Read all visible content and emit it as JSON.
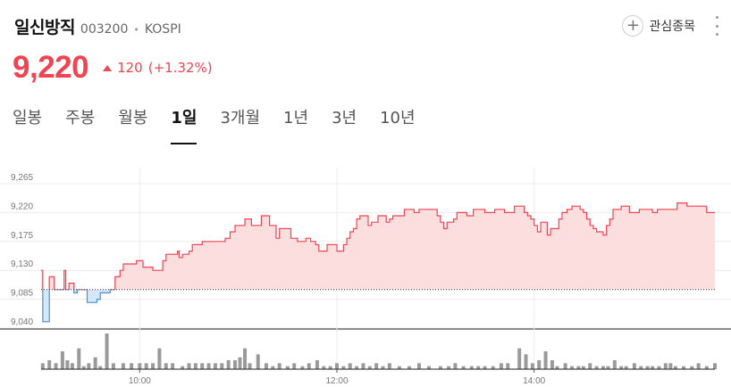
{
  "stock": {
    "name": "일신방직",
    "code": "003200",
    "market": "KOSPI",
    "price": "9,220",
    "change": "120",
    "change_pct": "(+1.32%)"
  },
  "watchlist": {
    "label": "관심종목"
  },
  "tabs": [
    {
      "label": "일봉",
      "active": false
    },
    {
      "label": "주봉",
      "active": false
    },
    {
      "label": "월봉",
      "active": false
    },
    {
      "label": "1일",
      "active": true
    },
    {
      "label": "3개월",
      "active": false
    },
    {
      "label": "1년",
      "active": false
    },
    {
      "label": "3년",
      "active": false
    },
    {
      "label": "10년",
      "active": false
    }
  ],
  "colors": {
    "up": "#f04452",
    "up_fill": "#fcdede",
    "down": "#4a8fd4",
    "down_fill": "#d6e8f7",
    "volume": "#9a9a9a"
  },
  "chart_data": {
    "type": "area",
    "reference_price": 9100,
    "y_ticks": [
      9040,
      9085,
      9130,
      9175,
      9220,
      9265
    ],
    "y_tick_labels": [
      "9,040",
      "9,085",
      "9,130",
      "9,175",
      "9,220",
      "9,265"
    ],
    "ylim": [
      9040,
      9290
    ],
    "x_tick_labels": [
      "10:00",
      "12:00",
      "14:00"
    ],
    "x_ticks_min": [
      60,
      180,
      300
    ],
    "xlim_min": [
      0,
      410
    ],
    "grid": true,
    "price_points": [
      [
        0,
        9130
      ],
      [
        1,
        9050
      ],
      [
        4,
        9050
      ],
      [
        5,
        9120
      ],
      [
        7,
        9120
      ],
      [
        8,
        9100
      ],
      [
        12,
        9100
      ],
      [
        14,
        9130
      ],
      [
        15,
        9100
      ],
      [
        17,
        9110
      ],
      [
        19,
        9110
      ],
      [
        20,
        9095
      ],
      [
        22,
        9100
      ],
      [
        26,
        9100
      ],
      [
        28,
        9080
      ],
      [
        32,
        9080
      ],
      [
        34,
        9085
      ],
      [
        36,
        9095
      ],
      [
        40,
        9095
      ],
      [
        42,
        9100
      ],
      [
        45,
        9120
      ],
      [
        48,
        9130
      ],
      [
        50,
        9140
      ],
      [
        55,
        9140
      ],
      [
        58,
        9145
      ],
      [
        61,
        9145
      ],
      [
        62,
        9135
      ],
      [
        66,
        9135
      ],
      [
        68,
        9130
      ],
      [
        72,
        9130
      ],
      [
        74,
        9145
      ],
      [
        76,
        9155
      ],
      [
        80,
        9155
      ],
      [
        83,
        9160
      ],
      [
        84,
        9150
      ],
      [
        86,
        9155
      ],
      [
        88,
        9155
      ],
      [
        90,
        9160
      ],
      [
        92,
        9170
      ],
      [
        96,
        9170
      ],
      [
        98,
        9175
      ],
      [
        102,
        9175
      ],
      [
        104,
        9175
      ],
      [
        110,
        9175
      ],
      [
        112,
        9180
      ],
      [
        115,
        9190
      ],
      [
        117,
        9190
      ],
      [
        118,
        9200
      ],
      [
        120,
        9200
      ],
      [
        122,
        9200
      ],
      [
        124,
        9210
      ],
      [
        126,
        9210
      ],
      [
        128,
        9200
      ],
      [
        132,
        9200
      ],
      [
        134,
        9215
      ],
      [
        137,
        9215
      ],
      [
        139,
        9200
      ],
      [
        141,
        9200
      ],
      [
        143,
        9180
      ],
      [
        145,
        9195
      ],
      [
        150,
        9195
      ],
      [
        152,
        9180
      ],
      [
        154,
        9180
      ],
      [
        156,
        9175
      ],
      [
        159,
        9175
      ],
      [
        161,
        9180
      ],
      [
        164,
        9175
      ],
      [
        167,
        9170
      ],
      [
        169,
        9160
      ],
      [
        172,
        9160
      ],
      [
        174,
        9170
      ],
      [
        178,
        9170
      ],
      [
        180,
        9160
      ],
      [
        182,
        9160
      ],
      [
        184,
        9170
      ],
      [
        186,
        9180
      ],
      [
        188,
        9190
      ],
      [
        190,
        9195
      ],
      [
        192,
        9210
      ],
      [
        194,
        9215
      ],
      [
        197,
        9215
      ],
      [
        199,
        9200
      ],
      [
        201,
        9205
      ],
      [
        203,
        9205
      ],
      [
        205,
        9215
      ],
      [
        208,
        9215
      ],
      [
        210,
        9205
      ],
      [
        212,
        9210
      ],
      [
        214,
        9215
      ],
      [
        218,
        9215
      ],
      [
        221,
        9225
      ],
      [
        225,
        9225
      ],
      [
        227,
        9220
      ],
      [
        230,
        9225
      ],
      [
        239,
        9225
      ],
      [
        241,
        9215
      ],
      [
        243,
        9205
      ],
      [
        245,
        9195
      ],
      [
        247,
        9205
      ],
      [
        249,
        9205
      ],
      [
        251,
        9210
      ],
      [
        253,
        9220
      ],
      [
        257,
        9220
      ],
      [
        259,
        9215
      ],
      [
        261,
        9215
      ],
      [
        263,
        9225
      ],
      [
        268,
        9225
      ],
      [
        270,
        9220
      ],
      [
        274,
        9220
      ],
      [
        276,
        9225
      ],
      [
        280,
        9225
      ],
      [
        282,
        9220
      ],
      [
        286,
        9220
      ],
      [
        288,
        9230
      ],
      [
        292,
        9230
      ],
      [
        294,
        9220
      ],
      [
        296,
        9215
      ],
      [
        298,
        9210
      ],
      [
        300,
        9200
      ],
      [
        302,
        9190
      ],
      [
        304,
        9205
      ],
      [
        306,
        9205
      ],
      [
        308,
        9185
      ],
      [
        310,
        9195
      ],
      [
        313,
        9195
      ],
      [
        315,
        9210
      ],
      [
        317,
        9220
      ],
      [
        320,
        9225
      ],
      [
        323,
        9230
      ],
      [
        326,
        9230
      ],
      [
        328,
        9225
      ],
      [
        330,
        9220
      ],
      [
        332,
        9210
      ],
      [
        334,
        9200
      ],
      [
        336,
        9195
      ],
      [
        338,
        9190
      ],
      [
        340,
        9190
      ],
      [
        342,
        9185
      ],
      [
        344,
        9200
      ],
      [
        346,
        9210
      ],
      [
        348,
        9225
      ],
      [
        351,
        9225
      ],
      [
        353,
        9230
      ],
      [
        356,
        9230
      ],
      [
        358,
        9220
      ],
      [
        362,
        9220
      ],
      [
        364,
        9225
      ],
      [
        370,
        9225
      ],
      [
        372,
        9220
      ],
      [
        375,
        9225
      ],
      [
        385,
        9225
      ],
      [
        387,
        9235
      ],
      [
        391,
        9235
      ],
      [
        393,
        9230
      ],
      [
        403,
        9230
      ],
      [
        405,
        9220
      ],
      [
        410,
        9220
      ]
    ],
    "volume_values": [
      [
        1,
        2
      ],
      [
        5,
        3
      ],
      [
        9,
        2
      ],
      [
        13,
        6
      ],
      [
        16,
        3
      ],
      [
        19,
        2
      ],
      [
        23,
        7
      ],
      [
        26,
        1
      ],
      [
        29,
        2
      ],
      [
        33,
        4
      ],
      [
        36,
        1
      ],
      [
        40,
        12
      ],
      [
        44,
        2
      ],
      [
        50,
        2
      ],
      [
        55,
        2
      ],
      [
        60,
        2
      ],
      [
        64,
        2
      ],
      [
        68,
        2
      ],
      [
        72,
        7
      ],
      [
        76,
        2
      ],
      [
        80,
        2
      ],
      [
        86,
        1
      ],
      [
        90,
        2
      ],
      [
        94,
        2
      ],
      [
        98,
        2
      ],
      [
        102,
        2
      ],
      [
        106,
        2
      ],
      [
        110,
        2
      ],
      [
        114,
        3
      ],
      [
        118,
        3
      ],
      [
        121,
        4
      ],
      [
        124,
        7
      ],
      [
        127,
        2
      ],
      [
        132,
        5
      ],
      [
        137,
        2
      ],
      [
        141,
        1
      ],
      [
        145,
        2
      ],
      [
        150,
        1
      ],
      [
        154,
        2
      ],
      [
        159,
        1
      ],
      [
        163,
        2
      ],
      [
        168,
        3
      ],
      [
        172,
        1
      ],
      [
        176,
        1
      ],
      [
        180,
        2
      ],
      [
        184,
        1
      ],
      [
        188,
        2
      ],
      [
        192,
        1
      ],
      [
        196,
        2
      ],
      [
        200,
        1
      ],
      [
        204,
        2
      ],
      [
        208,
        1
      ],
      [
        212,
        2
      ],
      [
        218,
        1
      ],
      [
        224,
        1
      ],
      [
        230,
        2
      ],
      [
        236,
        1
      ],
      [
        243,
        1
      ],
      [
        248,
        1
      ],
      [
        252,
        2
      ],
      [
        257,
        1
      ],
      [
        262,
        1
      ],
      [
        266,
        1
      ],
      [
        270,
        1
      ],
      [
        275,
        1
      ],
      [
        280,
        2
      ],
      [
        284,
        2
      ],
      [
        291,
        7
      ],
      [
        295,
        5
      ],
      [
        299,
        2
      ],
      [
        303,
        3
      ],
      [
        307,
        6
      ],
      [
        311,
        3
      ],
      [
        314,
        1
      ],
      [
        319,
        2
      ],
      [
        323,
        1
      ],
      [
        327,
        1
      ],
      [
        330,
        1
      ],
      [
        334,
        2
      ],
      [
        338,
        1
      ],
      [
        342,
        1
      ],
      [
        345,
        1
      ],
      [
        349,
        3
      ],
      [
        353,
        1
      ],
      [
        356,
        1
      ],
      [
        361,
        2
      ],
      [
        365,
        1
      ],
      [
        369,
        1
      ],
      [
        372,
        1
      ],
      [
        376,
        1
      ],
      [
        380,
        2
      ],
      [
        383,
        2
      ],
      [
        386,
        1
      ],
      [
        391,
        1
      ],
      [
        396,
        1
      ],
      [
        400,
        2
      ],
      [
        405,
        1
      ],
      [
        410,
        2
      ]
    ]
  }
}
